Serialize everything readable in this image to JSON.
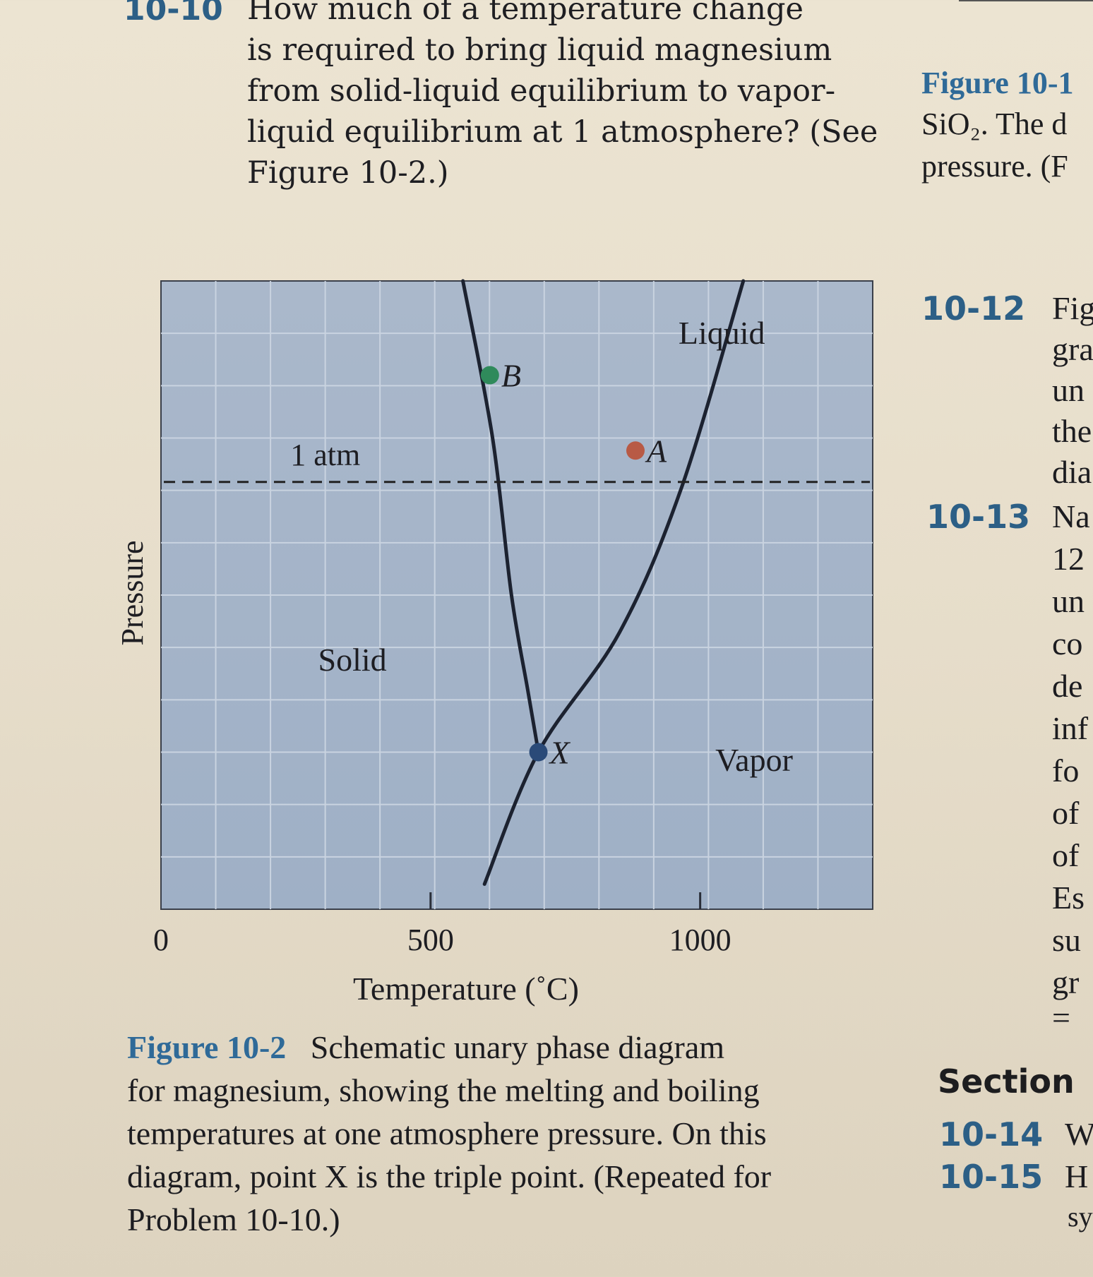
{
  "problem": {
    "number": "10-10",
    "lines": [
      "How much of a temperature change",
      "is required to bring liquid magnesium",
      "from solid-liquid equilibrium to vapor-",
      "liquid equilibrium at 1 atmosphere? (See",
      "Figure 10-2.)"
    ]
  },
  "right_column": {
    "figure_ref": "Figure 10-1",
    "fig_line2": "SiO₂. The d",
    "fig_line3": "pressure. (F",
    "problems": [
      {
        "number": "10-12",
        "fragments": [
          "Fig",
          "gra",
          "un",
          "the",
          "dia"
        ]
      },
      {
        "number": "10-13",
        "fragments": [
          "Na",
          "12",
          "un",
          "co",
          "de",
          "inf",
          "fo",
          "of",
          "of",
          "Es",
          "su",
          "gr",
          "="
        ]
      }
    ],
    "section": "Section",
    "bottom_problems": [
      {
        "number": "10-14",
        "fragment": "W"
      },
      {
        "number": "10-15",
        "fragment": "H"
      }
    ],
    "last_fragment": "sy"
  },
  "chart_data": {
    "type": "line",
    "title": "",
    "xlabel": "Temperature (˚C)",
    "ylabel": "Pressure",
    "x_ticks": [
      {
        "value": 0,
        "label": "0"
      },
      {
        "value": 500,
        "label": "500"
      },
      {
        "value": 1000,
        "label": "1000"
      }
    ],
    "xlim": [
      0,
      1320
    ],
    "ylim": [
      0,
      1
    ],
    "grid": true,
    "series": [
      {
        "points": [
          [
            560,
            1.0
          ],
          [
            615,
            0.75
          ],
          [
            650,
            0.5
          ],
          [
            680,
            0.35
          ],
          [
            700,
            0.25
          ]
        ]
      },
      {
        "points": [
          [
            600,
            0.04
          ],
          [
            700,
            0.25
          ],
          [
            850,
            0.44
          ],
          [
            965,
            0.67
          ],
          [
            1080,
            1.0
          ]
        ]
      }
    ],
    "reference_line": {
      "label": "1 atm",
      "y": 0.68
    },
    "points": [
      {
        "label": "B",
        "x": 610,
        "y": 0.85,
        "color": "#2f8a5b"
      },
      {
        "label": "A",
        "x": 880,
        "y": 0.73,
        "color": "#b85a45"
      },
      {
        "label": "X",
        "x": 700,
        "y": 0.25,
        "color": "#2a4a78"
      }
    ],
    "region_labels": [
      {
        "label": "Liquid",
        "x": 1040,
        "y": 0.9
      },
      {
        "label": "Solid",
        "x": 355,
        "y": 0.38
      },
      {
        "label": "Vapor",
        "x": 1100,
        "y": 0.22
      }
    ]
  },
  "caption": {
    "figure_label": "Figure 10-2",
    "lines": [
      "Schematic unary phase diagram",
      "for magnesium, showing the melting and boiling",
      "temperatures at one atmosphere pressure. On this",
      "diagram, point X is the triple point. (Repeated for",
      "Problem 10-10.)"
    ]
  }
}
